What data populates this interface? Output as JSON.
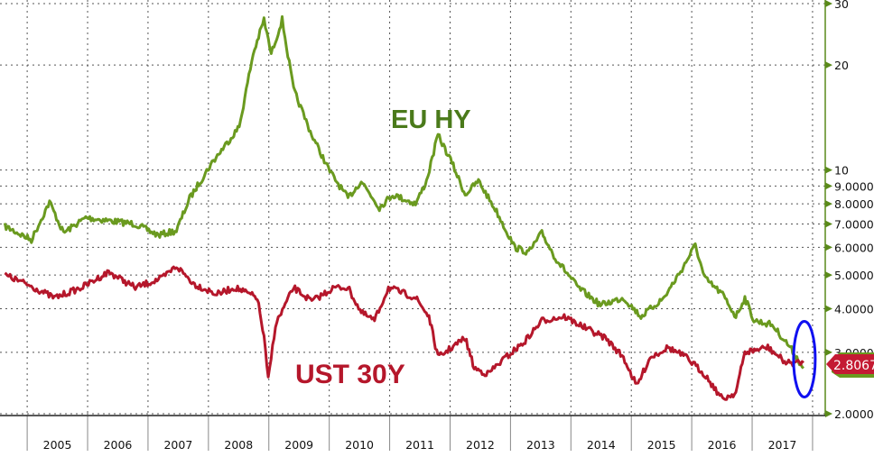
{
  "chart_data": {
    "type": "line",
    "title": "",
    "yscale": "log",
    "ylim": [
      2,
      30
    ],
    "xlim": [
      2004.55,
      2018.21
    ],
    "grid": true,
    "x_tick_labels": [
      "2005",
      "2006",
      "2007",
      "2008",
      "2009",
      "2010",
      "2011",
      "2012",
      "2013",
      "2014",
      "2015",
      "2016",
      "2017"
    ],
    "y_ticks": [
      {
        "value": 30,
        "label": "30"
      },
      {
        "value": 20,
        "label": "20"
      },
      {
        "value": 10,
        "label": "10"
      },
      {
        "value": 9,
        "label": "9.0000"
      },
      {
        "value": 8,
        "label": "8.0000"
      },
      {
        "value": 7,
        "label": "7.0000"
      },
      {
        "value": 6,
        "label": "6.0000"
      },
      {
        "value": 5,
        "label": "5.0000"
      },
      {
        "value": 4,
        "label": "4.0000"
      },
      {
        "value": 3,
        "label": "3.0000"
      },
      {
        "value": 2,
        "label": "2.0000"
      }
    ],
    "last_value_label": "2.8067",
    "highlight": {
      "x": 2017.85,
      "y": 2.8
    },
    "series": [
      {
        "name": "EU HY",
        "color": "#6a9a1f",
        "label_color": "#4a7a1a",
        "x": [
          2004.63,
          2005.07,
          2005.37,
          2005.6,
          2005.97,
          2006.79,
          2007.17,
          2007.47,
          2007.69,
          2008.06,
          2008.51,
          2008.74,
          2008.92,
          2009.04,
          2009.22,
          2009.41,
          2009.71,
          2010.01,
          2010.31,
          2010.53,
          2010.83,
          2011.05,
          2011.43,
          2011.61,
          2011.8,
          2012.03,
          2012.25,
          2012.47,
          2012.77,
          2013.07,
          2013.3,
          2013.52,
          2013.74,
          2014.12,
          2014.49,
          2014.87,
          2015.16,
          2015.54,
          2015.84,
          2016.06,
          2016.21,
          2016.51,
          2016.73,
          2016.88,
          2017.03,
          2017.33,
          2017.63,
          2017.85
        ],
        "y": [
          6.9,
          6.3,
          8.1,
          6.6,
          7.3,
          7.0,
          6.5,
          6.7,
          8.3,
          10.5,
          13.3,
          21.5,
          27,
          21.5,
          27,
          17,
          12.6,
          9.9,
          8.3,
          9.3,
          7.8,
          8.5,
          8.0,
          9.3,
          12.6,
          10.5,
          8.5,
          9.3,
          7.6,
          6.0,
          5.8,
          6.6,
          5.6,
          4.6,
          4.1,
          4.3,
          3.8,
          4.3,
          5.2,
          6.1,
          4.9,
          4.4,
          3.8,
          4.3,
          3.7,
          3.6,
          3.1,
          2.7
        ]
      },
      {
        "name": "UST 30Y",
        "color": "#b5172b",
        "label_color": "#b5172b",
        "x": [
          2004.63,
          2005.0,
          2005.45,
          2005.9,
          2006.35,
          2006.79,
          2007.24,
          2007.47,
          2007.77,
          2008.14,
          2008.44,
          2008.81,
          2008.92,
          2008.99,
          2009.11,
          2009.41,
          2009.71,
          2010.08,
          2010.31,
          2010.53,
          2010.75,
          2010.98,
          2011.43,
          2011.65,
          2011.8,
          2012.03,
          2012.25,
          2012.4,
          2012.62,
          2012.92,
          2013.22,
          2013.52,
          2013.89,
          2014.27,
          2014.57,
          2014.87,
          2015.09,
          2015.31,
          2015.61,
          2015.91,
          2016.21,
          2016.51,
          2016.73,
          2016.88,
          2017.26,
          2017.56,
          2017.85
        ],
        "y": [
          5.0,
          4.7,
          4.3,
          4.6,
          5.1,
          4.6,
          4.9,
          5.3,
          4.7,
          4.4,
          4.6,
          4.3,
          3.3,
          2.5,
          3.6,
          4.6,
          4.2,
          4.6,
          4.6,
          3.9,
          3.7,
          4.6,
          4.3,
          3.8,
          2.9,
          3.1,
          3.3,
          2.7,
          2.6,
          2.9,
          3.2,
          3.7,
          3.8,
          3.5,
          3.3,
          2.9,
          2.4,
          2.9,
          3.1,
          2.9,
          2.6,
          2.2,
          2.3,
          3.0,
          3.1,
          2.8,
          2.8
        ]
      }
    ]
  }
}
